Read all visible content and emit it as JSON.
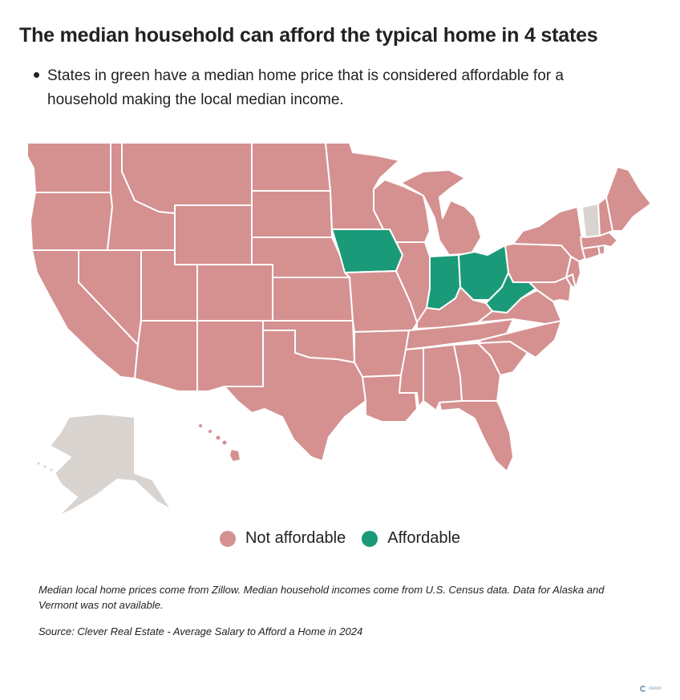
{
  "title": "The median household can afford the typical home in 4 states",
  "subtitle": "States in green have a median home price that is considered affordable for a household making the local median income.",
  "colors": {
    "not_affordable": "#d59090",
    "affordable": "#1a9a78",
    "no_data": "#d9d4d0",
    "border": "#ffffff"
  },
  "legend": {
    "not_affordable_label": "Not affordable",
    "affordable_label": "Affordable"
  },
  "affordable_states": [
    "Iowa",
    "Indiana",
    "Ohio",
    "West Virginia"
  ],
  "no_data_states": [
    "Alaska",
    "Vermont"
  ],
  "note": "Median local home prices come from Zillow. Median household incomes come from U.S. Census data. Data for Alaska and Vermont was not available.",
  "source": "Source: Clever Real Estate - Average Salary to Afford a Home in 2024",
  "brand": "clever"
}
